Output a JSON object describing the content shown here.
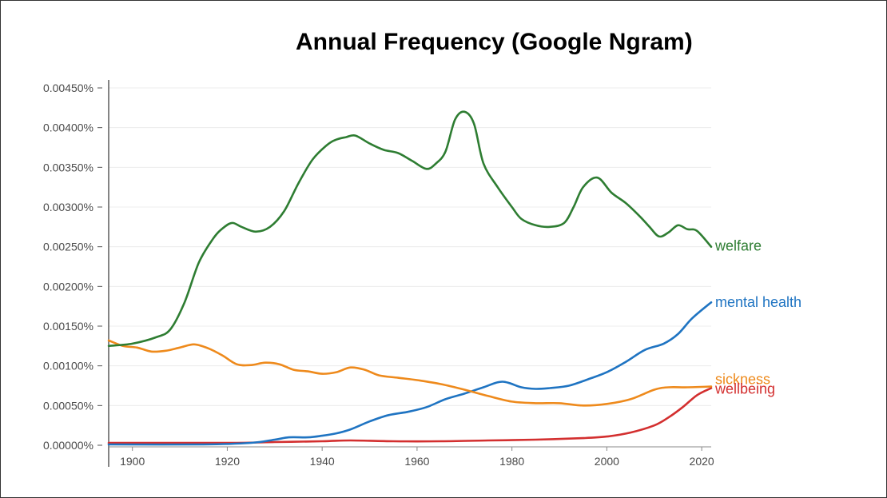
{
  "chart_data": {
    "type": "line",
    "title": "Annual Frequency (Google Ngram)",
    "xlabel": "",
    "ylabel": "",
    "xlim": [
      1895,
      2022
    ],
    "ylim": [
      0,
      0.0045
    ],
    "grid": true,
    "legend": "inline-right",
    "x_ticks": [
      1900,
      1920,
      1940,
      1960,
      1980,
      2000,
      2020
    ],
    "x_tick_labels": [
      "1900",
      "1920",
      "1940",
      "1960",
      "1980",
      "2000",
      "2020"
    ],
    "y_ticks": [
      0,
      0.0005,
      0.001,
      0.0015,
      0.002,
      0.0025,
      0.003,
      0.0035,
      0.004,
      0.0045
    ],
    "y_tick_labels": [
      "0.00000%",
      "0.00050%",
      "0.00100%",
      "0.00150%",
      "0.00200%",
      "0.00250%",
      "0.00300%",
      "0.00350%",
      "0.00400%",
      "0.00450%"
    ],
    "series": [
      {
        "name": "welfare",
        "color": "#2e7d32",
        "points": [
          [
            1895,
            0.00125
          ],
          [
            1900,
            0.00128
          ],
          [
            1905,
            0.00136
          ],
          [
            1908,
            0.00146
          ],
          [
            1911,
            0.0018
          ],
          [
            1914,
            0.0023
          ],
          [
            1917,
            0.0026
          ],
          [
            1919,
            0.00273
          ],
          [
            1921,
            0.0028
          ],
          [
            1923,
            0.00275
          ],
          [
            1926,
            0.00269
          ],
          [
            1929,
            0.00275
          ],
          [
            1932,
            0.00295
          ],
          [
            1935,
            0.0033
          ],
          [
            1938,
            0.0036
          ],
          [
            1941,
            0.00378
          ],
          [
            1943,
            0.00385
          ],
          [
            1945,
            0.00388
          ],
          [
            1947,
            0.0039
          ],
          [
            1950,
            0.0038
          ],
          [
            1953,
            0.00372
          ],
          [
            1956,
            0.00368
          ],
          [
            1959,
            0.00358
          ],
          [
            1962,
            0.00348
          ],
          [
            1964,
            0.00355
          ],
          [
            1966,
            0.0037
          ],
          [
            1968,
            0.0041
          ],
          [
            1970,
            0.0042
          ],
          [
            1972,
            0.00405
          ],
          [
            1974,
            0.00355
          ],
          [
            1977,
            0.00325
          ],
          [
            1980,
            0.003
          ],
          [
            1982,
            0.00285
          ],
          [
            1985,
            0.00277
          ],
          [
            1988,
            0.00275
          ],
          [
            1991,
            0.0028
          ],
          [
            1993,
            0.003
          ],
          [
            1995,
            0.00325
          ],
          [
            1998,
            0.00337
          ],
          [
            2001,
            0.00318
          ],
          [
            2004,
            0.00305
          ],
          [
            2007,
            0.00288
          ],
          [
            2009,
            0.00275
          ],
          [
            2011,
            0.00263
          ],
          [
            2013,
            0.00268
          ],
          [
            2015,
            0.00277
          ],
          [
            2017,
            0.00272
          ],
          [
            2019,
            0.0027
          ],
          [
            2022,
            0.0025
          ]
        ]
      },
      {
        "name": "mental health",
        "color": "#1f74c2",
        "points": [
          [
            1895,
            1e-05
          ],
          [
            1915,
            1e-05
          ],
          [
            1925,
            3e-05
          ],
          [
            1930,
            7e-05
          ],
          [
            1933,
            0.0001
          ],
          [
            1937,
            0.0001
          ],
          [
            1940,
            0.00012
          ],
          [
            1943,
            0.00015
          ],
          [
            1946,
            0.0002
          ],
          [
            1950,
            0.0003
          ],
          [
            1954,
            0.00038
          ],
          [
            1958,
            0.00042
          ],
          [
            1962,
            0.00048
          ],
          [
            1966,
            0.00058
          ],
          [
            1970,
            0.00065
          ],
          [
            1974,
            0.00073
          ],
          [
            1978,
            0.0008
          ],
          [
            1982,
            0.00073
          ],
          [
            1985,
            0.00071
          ],
          [
            1988,
            0.00072
          ],
          [
            1992,
            0.00075
          ],
          [
            1996,
            0.00083
          ],
          [
            2000,
            0.00092
          ],
          [
            2004,
            0.00105
          ],
          [
            2008,
            0.0012
          ],
          [
            2012,
            0.00128
          ],
          [
            2015,
            0.0014
          ],
          [
            2018,
            0.0016
          ],
          [
            2022,
            0.0018
          ]
        ]
      },
      {
        "name": "sickness",
        "color": "#ee8a1c",
        "points": [
          [
            1895,
            0.00132
          ],
          [
            1898,
            0.00125
          ],
          [
            1901,
            0.00123
          ],
          [
            1904,
            0.00118
          ],
          [
            1907,
            0.00119
          ],
          [
            1910,
            0.00123
          ],
          [
            1913,
            0.00127
          ],
          [
            1916,
            0.00122
          ],
          [
            1919,
            0.00113
          ],
          [
            1922,
            0.00102
          ],
          [
            1925,
            0.00101
          ],
          [
            1928,
            0.00104
          ],
          [
            1931,
            0.00102
          ],
          [
            1934,
            0.00095
          ],
          [
            1937,
            0.00093
          ],
          [
            1940,
            0.0009
          ],
          [
            1943,
            0.00092
          ],
          [
            1946,
            0.00098
          ],
          [
            1949,
            0.00095
          ],
          [
            1952,
            0.00088
          ],
          [
            1956,
            0.00085
          ],
          [
            1960,
            0.00082
          ],
          [
            1965,
            0.00077
          ],
          [
            1970,
            0.0007
          ],
          [
            1975,
            0.00062
          ],
          [
            1980,
            0.00055
          ],
          [
            1985,
            0.00053
          ],
          [
            1990,
            0.00053
          ],
          [
            1995,
            0.0005
          ],
          [
            2000,
            0.00052
          ],
          [
            2005,
            0.00058
          ],
          [
            2010,
            0.0007
          ],
          [
            2013,
            0.00073
          ],
          [
            2017,
            0.00073
          ],
          [
            2022,
            0.00074
          ]
        ]
      },
      {
        "name": "wellbeing",
        "color": "#d32f2f",
        "points": [
          [
            1895,
            3e-05
          ],
          [
            1920,
            3e-05
          ],
          [
            1930,
            4e-05
          ],
          [
            1940,
            5e-05
          ],
          [
            1946,
            6e-05
          ],
          [
            1955,
            5e-05
          ],
          [
            1965,
            5e-05
          ],
          [
            1975,
            6e-05
          ],
          [
            1985,
            7e-05
          ],
          [
            1995,
            9e-05
          ],
          [
            2000,
            0.00011
          ],
          [
            2005,
            0.00016
          ],
          [
            2010,
            0.00025
          ],
          [
            2013,
            0.00035
          ],
          [
            2016,
            0.00048
          ],
          [
            2019,
            0.00063
          ],
          [
            2022,
            0.00072
          ]
        ]
      }
    ]
  }
}
